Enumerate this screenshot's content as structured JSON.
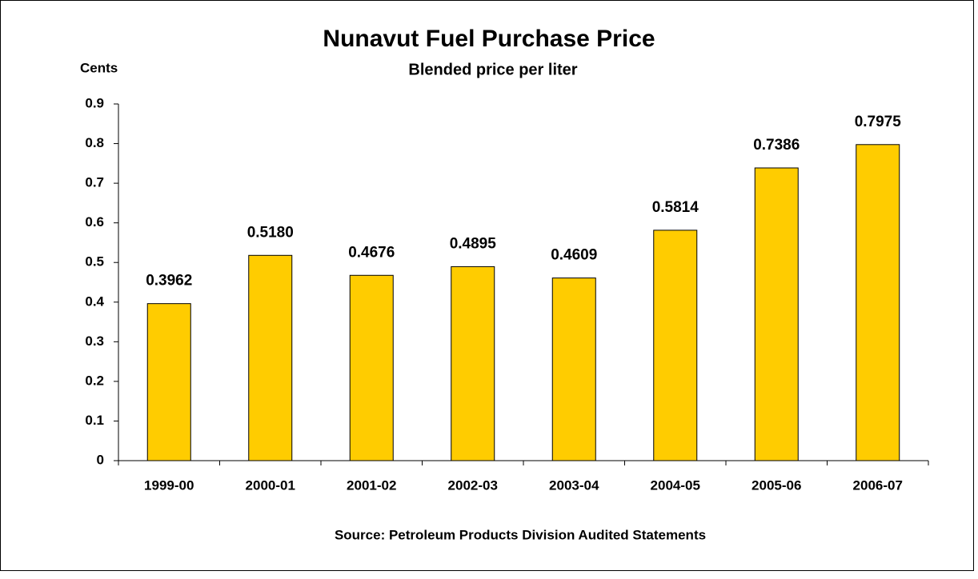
{
  "chart_data": {
    "type": "bar",
    "title": "Nunavut Fuel Purchase Price",
    "subtitle": "Blended price per liter",
    "y_label": "Cents",
    "source": "Source: Petroleum Products Division Audited Statements",
    "categories": [
      "1999-00",
      "2000-01",
      "2001-02",
      "2002-03",
      "2003-04",
      "2004-05",
      "2005-06",
      "2006-07"
    ],
    "values": [
      0.3962,
      0.518,
      0.4676,
      0.4895,
      0.4609,
      0.5814,
      0.7386,
      0.7975
    ],
    "value_labels": [
      "0.3962",
      "0.5180",
      "0.4676",
      "0.4895",
      "0.4609",
      "0.5814",
      "0.7386",
      "0.7975"
    ],
    "color": "#ffcc00",
    "ylim": [
      0,
      0.9
    ],
    "yticks": [
      0,
      0.1,
      0.2,
      0.3,
      0.4,
      0.5,
      0.6,
      0.7,
      0.8,
      0.9
    ],
    "grid": false
  }
}
